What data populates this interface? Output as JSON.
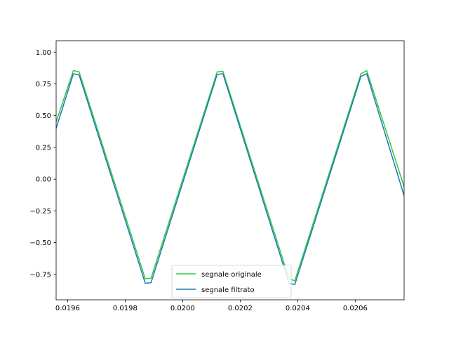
{
  "chart_data": {
    "type": "line",
    "title": "",
    "xlabel": "",
    "ylabel": "",
    "xlim": [
      0.01956,
      0.02077
    ],
    "ylim": [
      -0.95,
      1.09
    ],
    "xticks": [
      0.0196,
      0.0198,
      0.02,
      0.0202,
      0.0204,
      0.0206
    ],
    "xtick_labels": [
      "0.0196",
      "0.0198",
      "0.0200",
      "0.0202",
      "0.0204",
      "0.0206"
    ],
    "yticks": [
      1.0,
      0.75,
      0.5,
      0.25,
      0.0,
      -0.25,
      -0.5,
      -0.75
    ],
    "ytick_labels": [
      "1.00",
      "0.75",
      "0.50",
      "0.25",
      "0.00",
      "−0.25",
      "−0.50",
      "−0.75"
    ],
    "grid": false,
    "legend_position": "bottom-center",
    "series": [
      {
        "name": "segnale originale",
        "color": "#2ecc40",
        "x": [
          0.01956,
          0.01962,
          0.01964,
          0.01987,
          0.01989,
          0.02012,
          0.02014,
          0.02037,
          0.02039,
          0.02062,
          0.02064,
          0.02077
        ],
        "y": [
          0.45,
          0.855,
          0.845,
          -0.785,
          -0.78,
          0.845,
          0.85,
          -0.785,
          -0.8,
          0.83,
          0.855,
          -0.06
        ]
      },
      {
        "name": "segnale filtrato",
        "color": "#1f77b4",
        "x": [
          0.01956,
          0.01962,
          0.01964,
          0.01987,
          0.01989,
          0.02012,
          0.02014,
          0.02037,
          0.02039,
          0.02062,
          0.02064,
          0.02077
        ],
        "y": [
          0.4,
          0.83,
          0.82,
          -0.82,
          -0.815,
          0.825,
          0.83,
          -0.82,
          -0.83,
          0.81,
          0.83,
          -0.13
        ]
      }
    ]
  }
}
